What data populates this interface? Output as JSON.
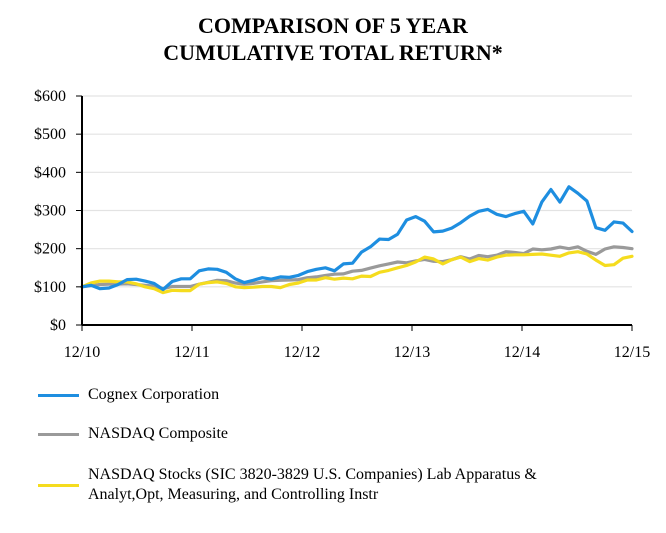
{
  "chart_data": {
    "type": "line",
    "title": [
      "COMPARISON OF 5 YEAR",
      "CUMULATIVE TOTAL RETURN*"
    ],
    "xlabel": "",
    "ylabel": "",
    "ylim": [
      0,
      600
    ],
    "yticks": [
      0,
      100,
      200,
      300,
      400,
      500,
      600
    ],
    "ytick_labels": [
      "$0",
      "$100",
      "$200",
      "$300",
      "$400",
      "$500",
      "$600"
    ],
    "xticks": [
      0,
      12,
      24,
      36,
      48,
      60
    ],
    "xtick_labels": [
      "12/10",
      "12/11",
      "12/12",
      "12/13",
      "12/14",
      "12/15"
    ],
    "x_unit": "months since 12/10",
    "xlim": [
      0,
      60
    ],
    "grid": "horizontal",
    "legend_position": "bottom",
    "series": [
      {
        "name": "Cognex Corporation",
        "color": "#1e8ee0",
        "values": [
          100,
          104,
          95,
          97,
          106,
          119,
          120,
          115,
          109,
          93,
          114,
          121,
          121,
          142,
          147,
          146,
          138,
          121,
          111,
          117,
          124,
          120,
          126,
          125,
          130,
          140,
          146,
          150,
          142,
          160,
          162,
          191,
          205,
          225,
          224,
          238,
          275,
          284,
          272,
          244,
          246,
          254,
          268,
          285,
          298,
          303,
          290,
          284,
          292,
          298,
          265,
          322,
          355,
          322,
          362,
          345,
          325,
          255,
          248,
          270,
          267,
          245
        ]
      },
      {
        "name": "NASDAQ Composite",
        "color": "#9a9a9a",
        "values": [
          100,
          103,
          106,
          107,
          107,
          108,
          106,
          104,
          102,
          95,
          101,
          101,
          101,
          107,
          112,
          117,
          116,
          110,
          107,
          109,
          113,
          116,
          117,
          118,
          119,
          124,
          126,
          130,
          133,
          134,
          141,
          143,
          149,
          155,
          160,
          165,
          163,
          168,
          172,
          167,
          166,
          171,
          179,
          173,
          182,
          179,
          183,
          192,
          190,
          187,
          199,
          197,
          199,
          204,
          200,
          205,
          193,
          185,
          199,
          205,
          203,
          200
        ]
      },
      {
        "name": "NASDAQ Stocks (SIC 3820-3829 U.S. Companies) Lab Apparatus & Analyt,Opt, Measuring, and Controlling Instr",
        "color": "#f5dc1e",
        "values": [
          100,
          110,
          115,
          115,
          113,
          113,
          108,
          100,
          95,
          85,
          91,
          90,
          90,
          107,
          111,
          113,
          109,
          100,
          98,
          99,
          101,
          101,
          98,
          106,
          110,
          118,
          118,
          124,
          120,
          123,
          121,
          128,
          127,
          138,
          143,
          150,
          156,
          165,
          178,
          173,
          160,
          171,
          178,
          166,
          174,
          170,
          178,
          183,
          184,
          184,
          185,
          186,
          183,
          180,
          189,
          192,
          186,
          170,
          156,
          158,
          175,
          180
        ]
      }
    ]
  },
  "legend": {
    "items": [
      {
        "label": "Cognex Corporation",
        "color": "#1e8ee0"
      },
      {
        "label": "NASDAQ Composite",
        "color": "#9a9a9a"
      },
      {
        "label": "NASDAQ Stocks (SIC 3820-3829 U.S. Companies) Lab Apparatus & Analyt,Opt, Measuring, and Controlling Instr",
        "color": "#f5dc1e"
      }
    ]
  },
  "colors": {
    "gridline": "#e3e3e3",
    "axis": "#000000"
  }
}
